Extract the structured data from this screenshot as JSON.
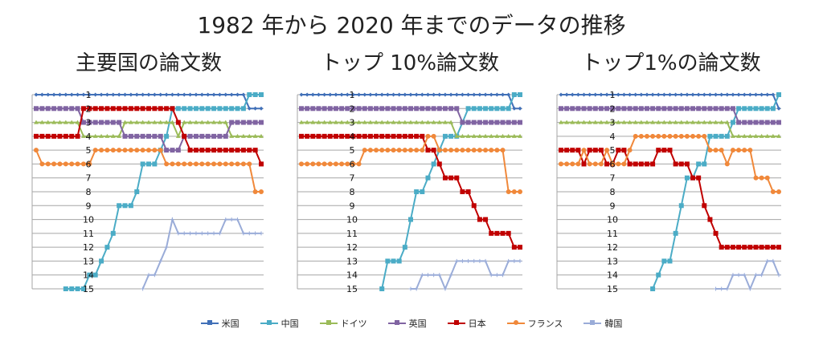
{
  "title": "1982 年から 2020 年までのデータの推移",
  "chart_data": [
    {
      "type": "line",
      "title": "主要国の論文数",
      "x": "1982-2020 (39 years)",
      "ylim": [
        1,
        15
      ],
      "y_inverted": true,
      "y_ticks": [
        "1",
        "2",
        "3",
        "4",
        "5",
        "6",
        "7",
        "8",
        "9",
        "10",
        "11",
        "12",
        "13",
        "14",
        "15"
      ],
      "series": [
        {
          "name": "米国",
          "values": [
            1,
            1,
            1,
            1,
            1,
            1,
            1,
            1,
            1,
            1,
            1,
            1,
            1,
            1,
            1,
            1,
            1,
            1,
            1,
            1,
            1,
            1,
            1,
            1,
            1,
            1,
            1,
            1,
            1,
            1,
            1,
            1,
            1,
            1,
            1,
            1,
            2,
            2,
            2
          ]
        },
        {
          "name": "中国",
          "values": [
            null,
            null,
            null,
            null,
            null,
            15,
            15,
            15,
            15,
            14,
            14,
            13,
            12,
            11,
            9,
            9,
            9,
            8,
            6,
            6,
            6,
            5,
            4,
            2,
            2,
            2,
            2,
            2,
            2,
            2,
            2,
            2,
            2,
            2,
            2,
            2,
            1,
            1,
            1
          ]
        },
        {
          "name": "ドイツ",
          "values": [
            3,
            3,
            3,
            3,
            3,
            3,
            3,
            3,
            4,
            4,
            4,
            4,
            4,
            4,
            4,
            3,
            3,
            3,
            3,
            3,
            3,
            3,
            3,
            3,
            4,
            3,
            3,
            3,
            3,
            3,
            3,
            3,
            3,
            4,
            4,
            4,
            4,
            4,
            4
          ]
        },
        {
          "name": "英国",
          "values": [
            2,
            2,
            2,
            2,
            2,
            2,
            2,
            2,
            3,
            3,
            3,
            3,
            3,
            3,
            3,
            4,
            4,
            4,
            4,
            4,
            4,
            4,
            5,
            5,
            5,
            4,
            4,
            4,
            4,
            4,
            4,
            4,
            4,
            3,
            3,
            3,
            3,
            3,
            3
          ]
        },
        {
          "name": "日本",
          "values": [
            4,
            4,
            4,
            4,
            4,
            4,
            4,
            4,
            2,
            2,
            2,
            2,
            2,
            2,
            2,
            2,
            2,
            2,
            2,
            2,
            2,
            2,
            2,
            2,
            3,
            4,
            5,
            5,
            5,
            5,
            5,
            5,
            5,
            5,
            5,
            5,
            5,
            5,
            6
          ]
        },
        {
          "name": "フランス",
          "values": [
            5,
            6,
            6,
            6,
            6,
            6,
            6,
            6,
            6,
            6,
            5,
            5,
            5,
            5,
            5,
            5,
            5,
            5,
            5,
            5,
            5,
            5,
            6,
            6,
            6,
            6,
            6,
            6,
            6,
            6,
            6,
            6,
            6,
            6,
            6,
            6,
            6,
            8,
            8
          ]
        },
        {
          "name": "韓国",
          "values": [
            null,
            null,
            null,
            null,
            null,
            null,
            null,
            null,
            null,
            null,
            null,
            null,
            null,
            null,
            null,
            null,
            null,
            null,
            15,
            14,
            14,
            13,
            12,
            10,
            11,
            11,
            11,
            11,
            11,
            11,
            11,
            11,
            10,
            10,
            10,
            11,
            11,
            11,
            11
          ]
        }
      ]
    },
    {
      "type": "line",
      "title": "トップ 10%論文数",
      "x": "1982-2020 (39 years)",
      "ylim": [
        1,
        15
      ],
      "y_inverted": true,
      "y_ticks": [
        "1",
        "2",
        "3",
        "4",
        "5",
        "6",
        "7",
        "8",
        "9",
        "10",
        "11",
        "12",
        "13",
        "14",
        "15"
      ],
      "series": [
        {
          "name": "米国",
          "values": [
            1,
            1,
            1,
            1,
            1,
            1,
            1,
            1,
            1,
            1,
            1,
            1,
            1,
            1,
            1,
            1,
            1,
            1,
            1,
            1,
            1,
            1,
            1,
            1,
            1,
            1,
            1,
            1,
            1,
            1,
            1,
            1,
            1,
            1,
            1,
            1,
            1,
            2,
            2
          ]
        },
        {
          "name": "中国",
          "values": [
            null,
            null,
            null,
            null,
            null,
            null,
            null,
            null,
            null,
            null,
            null,
            null,
            null,
            null,
            15,
            13,
            13,
            13,
            12,
            10,
            8,
            8,
            7,
            6,
            5,
            4,
            4,
            4,
            3,
            2,
            2,
            2,
            2,
            2,
            2,
            2,
            2,
            1,
            1
          ]
        },
        {
          "name": "ドイツ",
          "values": [
            3,
            3,
            3,
            3,
            3,
            3,
            3,
            3,
            3,
            3,
            3,
            3,
            3,
            3,
            3,
            3,
            3,
            3,
            3,
            3,
            3,
            3,
            3,
            3,
            3,
            3,
            3,
            4,
            4,
            4,
            4,
            4,
            4,
            4,
            4,
            4,
            4,
            4,
            4
          ]
        },
        {
          "name": "英国",
          "values": [
            2,
            2,
            2,
            2,
            2,
            2,
            2,
            2,
            2,
            2,
            2,
            2,
            2,
            2,
            2,
            2,
            2,
            2,
            2,
            2,
            2,
            2,
            2,
            2,
            2,
            2,
            2,
            2,
            3,
            3,
            3,
            3,
            3,
            3,
            3,
            3,
            3,
            3,
            3
          ]
        },
        {
          "name": "日本",
          "values": [
            4,
            4,
            4,
            4,
            4,
            4,
            4,
            4,
            4,
            4,
            4,
            4,
            4,
            4,
            4,
            4,
            4,
            4,
            4,
            4,
            4,
            4,
            5,
            5,
            6,
            7,
            7,
            7,
            8,
            8,
            9,
            10,
            10,
            11,
            11,
            11,
            11,
            12,
            12
          ]
        },
        {
          "name": "フランス",
          "values": [
            6,
            6,
            6,
            6,
            6,
            6,
            6,
            6,
            6,
            6,
            6,
            5,
            5,
            5,
            5,
            5,
            5,
            5,
            5,
            5,
            5,
            5,
            4,
            4,
            5,
            5,
            5,
            5,
            5,
            5,
            5,
            5,
            5,
            5,
            5,
            5,
            8,
            8,
            8
          ]
        },
        {
          "name": "韓国",
          "values": [
            null,
            null,
            null,
            null,
            null,
            null,
            null,
            null,
            null,
            null,
            null,
            null,
            null,
            null,
            null,
            null,
            null,
            null,
            null,
            15,
            15,
            14,
            14,
            14,
            14,
            15,
            14,
            13,
            13,
            13,
            13,
            13,
            13,
            14,
            14,
            14,
            13,
            13,
            13
          ]
        }
      ]
    },
    {
      "type": "line",
      "title": "トップ1%の論文数",
      "x": "1982-2020 (39 years)",
      "ylim": [
        1,
        15
      ],
      "y_inverted": true,
      "y_ticks": [
        "1",
        "2",
        "3",
        "4",
        "5",
        "6",
        "7",
        "8",
        "9",
        "10",
        "11",
        "12",
        "13",
        "14",
        "15"
      ],
      "series": [
        {
          "name": "米国",
          "values": [
            1,
            1,
            1,
            1,
            1,
            1,
            1,
            1,
            1,
            1,
            1,
            1,
            1,
            1,
            1,
            1,
            1,
            1,
            1,
            1,
            1,
            1,
            1,
            1,
            1,
            1,
            1,
            1,
            1,
            1,
            1,
            1,
            1,
            1,
            1,
            1,
            1,
            1,
            2
          ]
        },
        {
          "name": "中国",
          "values": [
            null,
            null,
            null,
            null,
            null,
            null,
            null,
            null,
            null,
            null,
            null,
            null,
            null,
            null,
            null,
            null,
            15,
            14,
            13,
            13,
            11,
            9,
            7,
            7,
            6,
            6,
            4,
            4,
            4,
            4,
            3,
            2,
            2,
            2,
            2,
            2,
            2,
            2,
            1
          ]
        },
        {
          "name": "ドイツ",
          "values": [
            3,
            3,
            3,
            3,
            3,
            3,
            3,
            3,
            3,
            3,
            3,
            3,
            3,
            3,
            3,
            3,
            3,
            3,
            3,
            3,
            3,
            3,
            3,
            3,
            3,
            3,
            3,
            3,
            3,
            3,
            4,
            4,
            4,
            4,
            4,
            4,
            4,
            4,
            4
          ]
        },
        {
          "name": "英国",
          "values": [
            2,
            2,
            2,
            2,
            2,
            2,
            2,
            2,
            2,
            2,
            2,
            2,
            2,
            2,
            2,
            2,
            2,
            2,
            2,
            2,
            2,
            2,
            2,
            2,
            2,
            2,
            2,
            2,
            2,
            2,
            2,
            3,
            3,
            3,
            3,
            3,
            3,
            3,
            3
          ]
        },
        {
          "name": "日本",
          "values": [
            5,
            5,
            5,
            5,
            6,
            5,
            5,
            5,
            6,
            6,
            5,
            5,
            6,
            6,
            6,
            6,
            6,
            5,
            5,
            5,
            6,
            6,
            6,
            7,
            7,
            9,
            10,
            11,
            12,
            12,
            12,
            12,
            12,
            12,
            12,
            12,
            12,
            12,
            12
          ]
        },
        {
          "name": "フランス",
          "values": [
            6,
            6,
            6,
            6,
            5,
            6,
            6,
            6,
            5,
            6,
            6,
            6,
            5,
            4,
            4,
            4,
            4,
            4,
            4,
            4,
            4,
            4,
            4,
            4,
            4,
            4,
            5,
            5,
            5,
            6,
            5,
            5,
            5,
            5,
            7,
            7,
            7,
            8,
            8
          ]
        },
        {
          "name": "韓国",
          "values": [
            null,
            null,
            null,
            null,
            null,
            null,
            null,
            null,
            null,
            null,
            null,
            null,
            null,
            null,
            null,
            null,
            null,
            null,
            null,
            null,
            null,
            null,
            null,
            null,
            null,
            null,
            null,
            15,
            15,
            15,
            14,
            14,
            14,
            15,
            14,
            14,
            13,
            13,
            14
          ]
        }
      ]
    }
  ],
  "legend": [
    "米国",
    "中国",
    "ドイツ",
    "英国",
    "日本",
    "フランス",
    "韓国"
  ],
  "colors": {
    "米国": "#4170b8",
    "中国": "#4bacc6",
    "ドイツ": "#9bbb59",
    "英国": "#8064a2",
    "日本": "#c00000",
    "フランス": "#f0883a",
    "韓国": "#9aacd8"
  }
}
